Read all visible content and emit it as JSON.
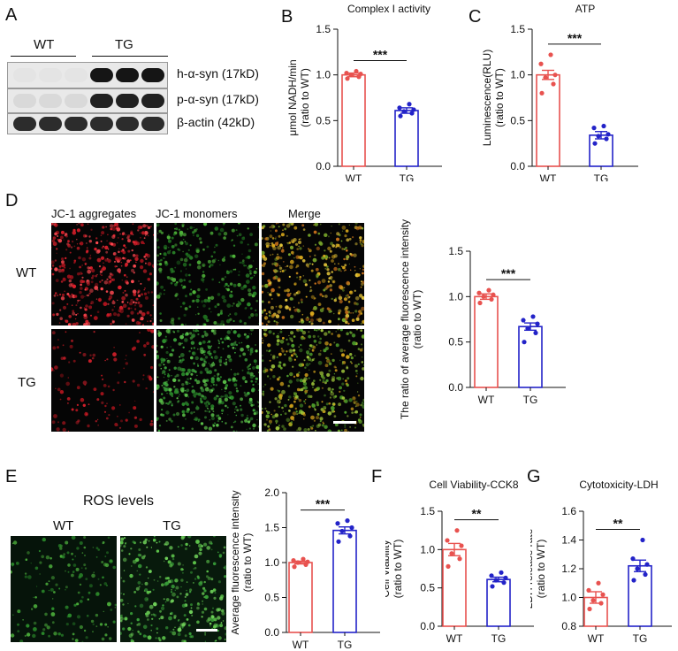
{
  "panels": {
    "A": {
      "letter": "A",
      "group_wt": "WT",
      "group_tg": "TG",
      "rows": [
        {
          "label": "h-α-syn (17kD)",
          "lanes": [
            0.03,
            0.03,
            0.03,
            0.95,
            0.95,
            0.95
          ]
        },
        {
          "label": "p-α-syn (17kD)",
          "lanes": [
            0.08,
            0.08,
            0.08,
            0.9,
            0.9,
            0.9
          ]
        },
        {
          "label": "β-actin (42kD)",
          "lanes": [
            0.85,
            0.85,
            0.85,
            0.85,
            0.85,
            0.85
          ]
        }
      ]
    },
    "B": {
      "letter": "B"
    },
    "C": {
      "letter": "C"
    },
    "D": {
      "letter": "D",
      "col_labels": [
        "JC-1 aggregates",
        "JC-1 monomers",
        "Merge"
      ],
      "row_labels": [
        "WT",
        "TG"
      ]
    },
    "E": {
      "letter": "E",
      "title": "ROS levels",
      "col_labels": [
        "WT",
        "TG"
      ]
    },
    "F": {
      "letter": "F"
    },
    "G": {
      "letter": "G"
    }
  },
  "chart_data": [
    {
      "id": "B",
      "type": "bar",
      "title": "Complex I activity",
      "ylabel": "μmol NADH/min\n(ratio to WT)",
      "categories": [
        "WT",
        "TG"
      ],
      "values": [
        1.0,
        0.61
      ],
      "errors": [
        0.02,
        0.03
      ],
      "points": [
        [
          0.96,
          0.98,
          1.0,
          1.01,
          1.02,
          1.04
        ],
        [
          0.55,
          0.58,
          0.6,
          0.62,
          0.64,
          0.68
        ]
      ],
      "ylim": [
        0,
        1.5
      ],
      "yticks": [
        "0.0",
        "0.5",
        "1.0",
        "1.5"
      ],
      "significance": "***",
      "colors": [
        "#e8524f",
        "#2323c8"
      ]
    },
    {
      "id": "C",
      "type": "bar",
      "title": "ATP",
      "ylabel": "Luminescence(RLU)\n(ratio to WT)",
      "categories": [
        "WT",
        "TG"
      ],
      "values": [
        1.0,
        0.34
      ],
      "errors": [
        0.05,
        0.04
      ],
      "points": [
        [
          0.8,
          0.9,
          0.97,
          1.0,
          1.12,
          1.22
        ],
        [
          0.25,
          0.3,
          0.33,
          0.35,
          0.42,
          0.44
        ]
      ],
      "ylim": [
        0,
        1.5
      ],
      "yticks": [
        "0.0",
        "0.5",
        "1.0",
        "1.5"
      ],
      "significance": "***",
      "colors": [
        "#e8524f",
        "#2323c8"
      ]
    },
    {
      "id": "D",
      "type": "bar",
      "title": "",
      "ylabel": "The ratio of average fluorescence intensity\n(ratio to WT)",
      "categories": [
        "WT",
        "TG"
      ],
      "values": [
        1.0,
        0.67
      ],
      "errors": [
        0.03,
        0.04
      ],
      "points": [
        [
          0.93,
          0.97,
          1.0,
          1.02,
          1.04,
          1.07
        ],
        [
          0.5,
          0.6,
          0.65,
          0.7,
          0.74,
          0.78
        ]
      ],
      "ylim": [
        0,
        1.5
      ],
      "yticks": [
        "0.0",
        "0.5",
        "1.0",
        "1.5"
      ],
      "significance": "***",
      "colors": [
        "#e8524f",
        "#2323c8"
      ]
    },
    {
      "id": "E",
      "type": "bar",
      "title": "",
      "ylabel": "Average fluorescence intensity\n(ratio to WT)",
      "categories": [
        "WT",
        "TG"
      ],
      "values": [
        1.0,
        1.46
      ],
      "errors": [
        0.02,
        0.05
      ],
      "points": [
        [
          0.94,
          0.97,
          1.0,
          1.01,
          1.03,
          1.05
        ],
        [
          1.3,
          1.38,
          1.45,
          1.5,
          1.56,
          1.6
        ]
      ],
      "ylim": [
        0,
        2.0
      ],
      "yticks": [
        "0.0",
        "0.5",
        "1.0",
        "1.5",
        "2.0"
      ],
      "significance": "***",
      "colors": [
        "#e8524f",
        "#2323c8"
      ]
    },
    {
      "id": "F",
      "type": "bar",
      "title": "Cell Viability-CCK8",
      "ylabel": "Cell Viability\n(ratio to WT)",
      "categories": [
        "WT",
        "TG"
      ],
      "values": [
        1.0,
        0.61
      ],
      "errors": [
        0.08,
        0.03
      ],
      "points": [
        [
          0.78,
          0.88,
          0.95,
          1.05,
          1.12,
          1.25
        ],
        [
          0.52,
          0.57,
          0.6,
          0.63,
          0.66,
          0.7
        ]
      ],
      "ylim": [
        0,
        1.5
      ],
      "yticks": [
        "0.0",
        "0.5",
        "1.0",
        "1.5"
      ],
      "significance": "**",
      "colors": [
        "#e8524f",
        "#2323c8"
      ]
    },
    {
      "id": "G",
      "type": "bar",
      "title": "Cytotoxicity-LDH",
      "ylabel": "LDH release rate\n(ratio to WT)",
      "categories": [
        "WT",
        "TG"
      ],
      "values": [
        1.0,
        1.22
      ],
      "errors": [
        0.04,
        0.04
      ],
      "points": [
        [
          0.92,
          0.96,
          0.98,
          1.02,
          1.05,
          1.1
        ],
        [
          1.12,
          1.16,
          1.2,
          1.23,
          1.27,
          1.4
        ]
      ],
      "ylim": [
        0.8,
        1.6
      ],
      "yticks": [
        "0.8",
        "1.0",
        "1.2",
        "1.4",
        "1.6"
      ],
      "significance": "**",
      "colors": [
        "#e8524f",
        "#2323c8"
      ]
    }
  ]
}
